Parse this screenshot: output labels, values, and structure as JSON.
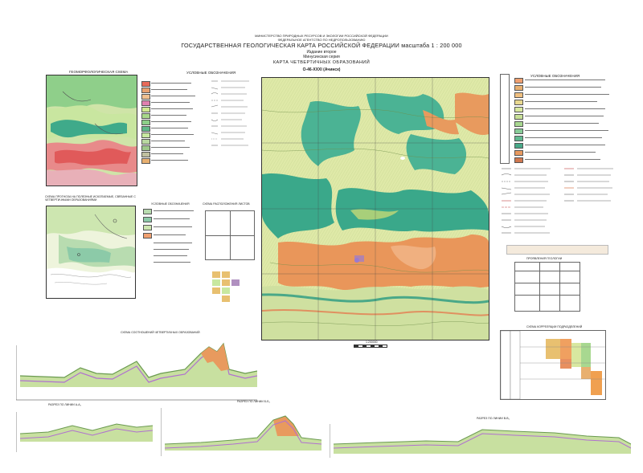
{
  "header": {
    "ministry_line": "МИНИСТЕРСТВО ПРИРОДНЫХ РЕСУРСОВ И ЭКОЛОГИИ РОССИЙСКОЙ ФЕДЕРАЦИИ",
    "agency_line": "ФЕДЕРАЛЬНОЕ АГЕНТСТВО ПО НЕДРОПОЛЬЗОВАНИЮ",
    "title": "ГОСУДАРСТВЕННАЯ  ГЕОЛОГИЧЕСКАЯ КАРТА РОССИЙСКОЙ ФЕДЕРАЦИИ  масштаба  1 : 200 000",
    "edition": "Издание второе",
    "series": "Минусинская серия",
    "map_title": "КАРТА ЧЕТВЕРТИЧНЫХ ОБРАЗОВАНИЙ",
    "sheet": "O-46-XXXI (Ачинск)"
  },
  "inset_top": {
    "title": "ГЕОМОРФОЛОГИЧЕСКАЯ СХЕМА",
    "legend_title": "УСЛОВНЫЕ ОБОЗНАЧЕНИЯ"
  },
  "inset_bottom": {
    "title": "СХЕМА ПРОГНОЗА НА ПОЛЕЗНЫЕ ИСКОПАЕМЫЕ, СВЯЗАННЫЕ С ЧЕТВЕРТИЧНЫМИ ОБРАЗОВАНИЯМИ",
    "legend_title": "УСЛОВНЫЕ ОБОЗНАЧЕНИЯ",
    "layout_title": "СХЕМА РАСПОЛОЖЕНИЯ ЛИСТОВ"
  },
  "main_map": {
    "scale_label": "1:200000"
  },
  "right_legend": {
    "title": "УСЛОВНЫЕ ОБОЗНАЧЕНИЯ",
    "table_title": "ПРОЯВЛЕНИЯ ГЕОЛОГИИ",
    "correlation_title": "СХЕМА КОРРЕЛЯЦИИ ПОДРАЗДЕЛЕНИЙ"
  },
  "profiles": {
    "main_title": "СХЕМА СООТНОШЕНИЙ ЧЕТВЕРТИЧНЫХ ОБРАЗОВАНИЙ",
    "section_a": "РАЗРЕЗ ПО ЛИНИИ  А-А₁",
    "section_b": "РАЗРЕЗ ПО ЛИНИИ  Б-Б₁",
    "section_c": "РАЗРЕЗ ПО ЛИНИИ  В-В₁"
  },
  "colors": {
    "orange": "#e8935a",
    "light_green": "#cfe0a0",
    "pale_yellow": "#eef0b8",
    "teal": "#3fa88a",
    "dark_teal": "#2f8f78",
    "pink": "#e07a9a",
    "red": "#d84a4a",
    "violet": "#9a6fc0"
  }
}
